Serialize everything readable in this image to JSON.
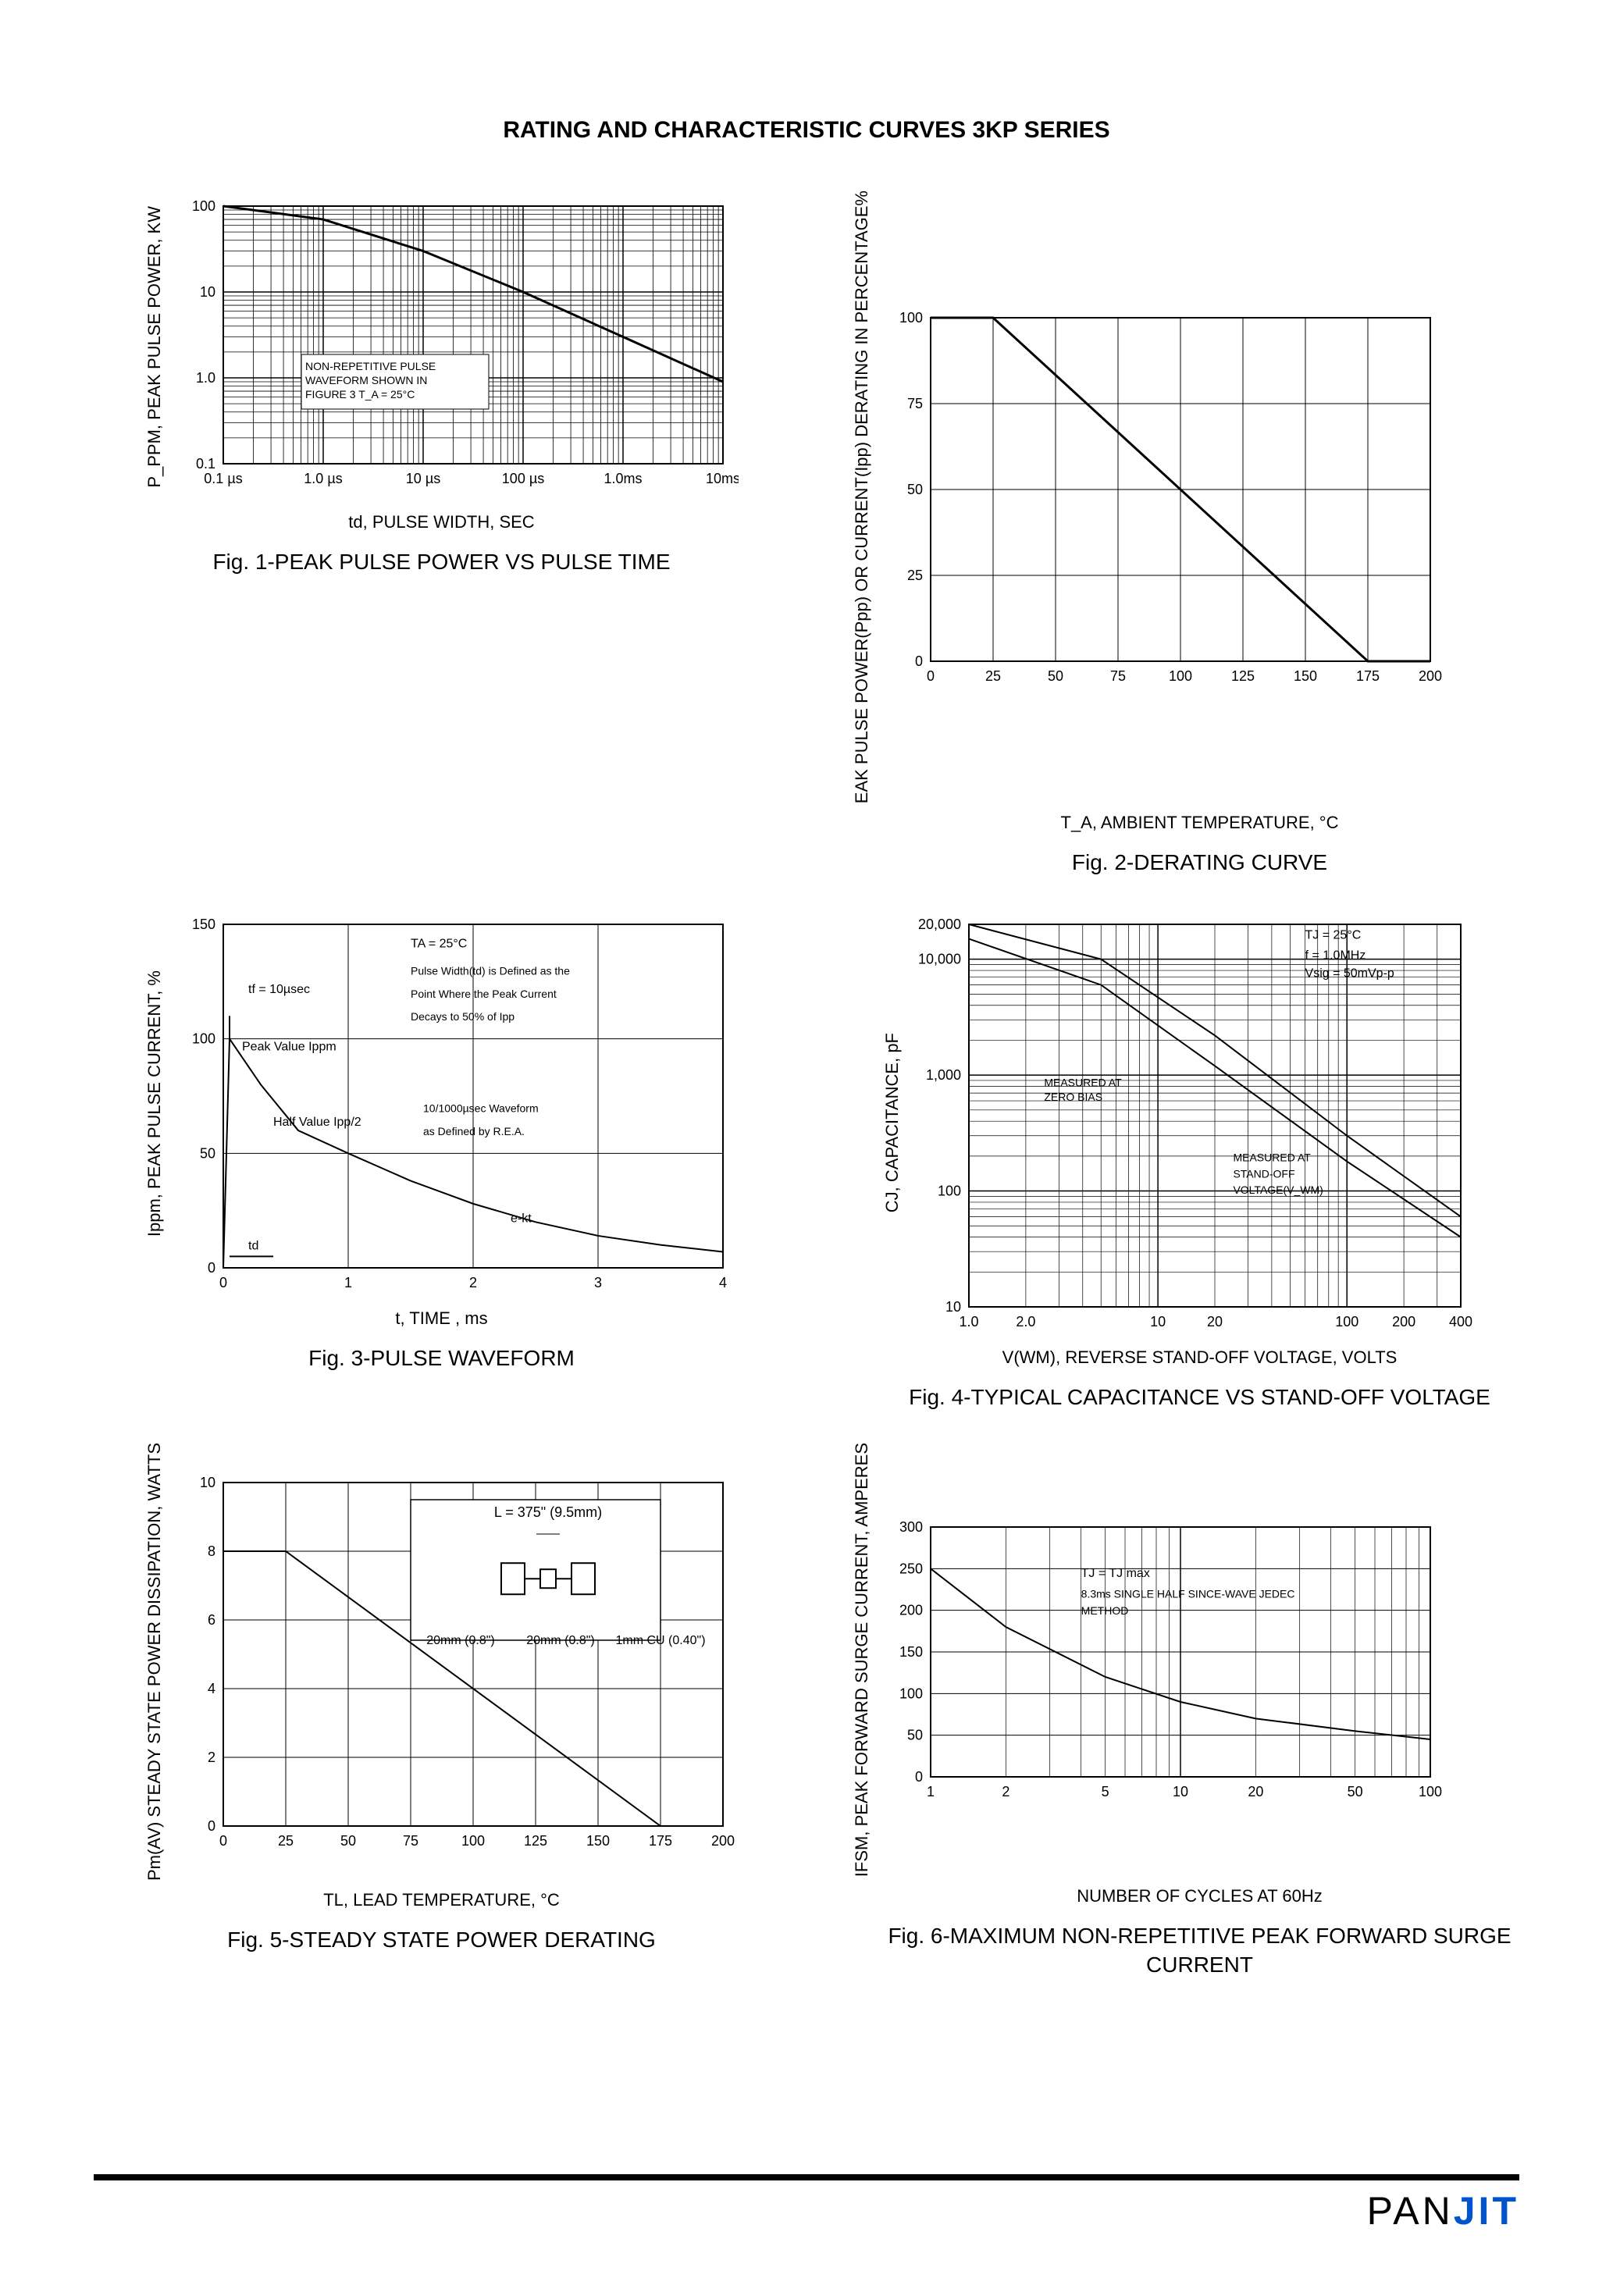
{
  "title": "RATING AND CHARACTERISTIC CURVES 3KP SERIES",
  "logo_text": "PAN",
  "logo_j": "J",
  "logo_i": "I",
  "logo_t": "T",
  "fig1": {
    "type": "line-loglog",
    "caption": "Fig. 1-PEAK PULSE POWER VS PULSE TIME",
    "xlabel": "td, PULSE WIDTH, SEC",
    "ylabel": "P_PPM, PEAK PULSE POWER, KW",
    "xlim": [
      0.1,
      10000
    ],
    "ylim": [
      0.1,
      100
    ],
    "xticks": [
      "0.1 µs",
      "1.0 µs",
      "10 µs",
      "100 µs",
      "1.0ms",
      "10ms"
    ],
    "yticks": [
      "0.1",
      "1.0",
      "10",
      "100"
    ],
    "note": "NON-REPETITIVE PULSE WAVEFORM SHOWN IN FIGURE 3 T_A = 25°C",
    "curve_color": "#000000",
    "grid_color": "#000000",
    "background_color": "#ffffff",
    "data_decades_x": [
      0.1,
      1,
      10,
      100,
      1000,
      10000
    ],
    "data_y_at_ticks": [
      100,
      70,
      30,
      10,
      3,
      0.9
    ]
  },
  "fig2": {
    "type": "line",
    "caption": "Fig. 2-DERATING CURVE",
    "xlabel": "T_A, AMBIENT TEMPERATURE, °C",
    "ylabel": "EAK PULSE POWER(Ppp) OR CURRENT(Ipp) DERATING IN PERCENTAGE%",
    "xlim": [
      0,
      200
    ],
    "ylim": [
      0,
      100
    ],
    "xticks": [
      0,
      25,
      50,
      75,
      100,
      125,
      150,
      175,
      200
    ],
    "yticks": [
      0,
      25,
      50,
      75,
      100
    ],
    "curve_color": "#000000",
    "grid_color": "#000000",
    "background_color": "#ffffff",
    "data": [
      [
        0,
        100
      ],
      [
        25,
        100
      ],
      [
        175,
        0
      ],
      [
        200,
        0
      ]
    ],
    "line_width": 3
  },
  "fig3": {
    "type": "line",
    "caption": "Fig. 3-PULSE WAVEFORM",
    "xlabel": "t, TIME , ms",
    "ylabel": "Ippm, PEAK PULSE CURRENT, %",
    "xlim": [
      0,
      4
    ],
    "ylim": [
      0,
      150
    ],
    "xticks": [
      0,
      1.0,
      2.0,
      3.0,
      4.0
    ],
    "yticks": [
      0,
      50,
      100,
      150
    ],
    "notes": [
      "TA = 25°C",
      "tf = 10µsec",
      "Peak Value Ippm",
      "Half Value Ipp/2",
      "Pulse Width(td) is Defined as the Point Where the Peak Current Decays to 50% of Ipp",
      "10/1000µsec Waveform as Defined by R.E.A.",
      "e-kt",
      "td"
    ],
    "curve_color": "#000000",
    "grid_color": "#000000",
    "background_color": "#ffffff",
    "data": [
      [
        0,
        0
      ],
      [
        0.05,
        100
      ],
      [
        0.3,
        80
      ],
      [
        0.6,
        60
      ],
      [
        1.0,
        50
      ],
      [
        1.5,
        38
      ],
      [
        2.0,
        28
      ],
      [
        2.5,
        20
      ],
      [
        3.0,
        14
      ],
      [
        3.5,
        10
      ],
      [
        4.0,
        7
      ]
    ],
    "line_width": 2
  },
  "fig4": {
    "type": "line-loglog",
    "caption": "Fig. 4-TYPICAL CAPACITANCE VS STAND-OFF VOLTAGE",
    "xlabel": "V(WM), REVERSE STAND-OFF VOLTAGE, VOLTS",
    "ylabel": "CJ, CAPACITANCE, pF",
    "xlim": [
      1,
      400
    ],
    "ylim": [
      10,
      20000
    ],
    "xticks": [
      "1.0",
      "2.0",
      "10",
      "20",
      "100",
      "200",
      "400"
    ],
    "yticks": [
      "10",
      "100",
      "1,000",
      "10,000",
      "20,000"
    ],
    "notes": [
      "TJ = 25°C",
      "f = 1.0MHz",
      "Vsig = 50mVp-p",
      "MEASURED AT ZERO BIAS",
      "MEASURED AT STAND-OFF VOLTAGE(V_WM)"
    ],
    "curve_color": "#000000",
    "grid_color": "#000000",
    "background_color": "#ffffff",
    "series1": [
      [
        1,
        20000
      ],
      [
        5,
        10000
      ],
      [
        20,
        2200
      ],
      [
        100,
        300
      ],
      [
        400,
        60
      ]
    ],
    "series2": [
      [
        1,
        15000
      ],
      [
        5,
        6000
      ],
      [
        20,
        1200
      ],
      [
        100,
        180
      ],
      [
        400,
        40
      ]
    ],
    "line_width": 2
  },
  "fig5": {
    "type": "line",
    "caption": "Fig. 5-STEADY STATE POWER DERATING",
    "xlabel": "TL, LEAD TEMPERATURE, °C",
    "ylabel": "Pm(AV) STEADY STATE POWER DISSIPATION, WATTS",
    "xlim": [
      0,
      200
    ],
    "ylim": [
      0,
      10
    ],
    "xticks": [
      0,
      25,
      50,
      75,
      100,
      125,
      150,
      175,
      200
    ],
    "yticks": [
      0,
      2.0,
      4.0,
      6.0,
      8.0,
      10.0
    ],
    "curve_color": "#000000",
    "grid_color": "#000000",
    "background_color": "#ffffff",
    "data": [
      [
        0,
        8.0
      ],
      [
        25,
        8.0
      ],
      [
        175,
        0
      ],
      [
        200,
        0
      ]
    ],
    "line_width": 2,
    "inline_note": "L = 375\" (9.5mm)",
    "dim_labels": [
      "20mm (0.8\")",
      "20mm (0.8\")",
      "1mm CU (0.40\")"
    ]
  },
  "fig6": {
    "type": "line-logx",
    "caption": "Fig. 6-MAXIMUM NON-REPETITIVE PEAK FORWARD SURGE CURRENT",
    "xlabel": "NUMBER OF CYCLES AT 60Hz",
    "ylabel": "IFSM, PEAK FORWARD SURGE CURRENT, AMPERES",
    "xlim": [
      1,
      100
    ],
    "ylim": [
      0,
      300
    ],
    "xticks": [
      "1",
      "2",
      "5",
      "10",
      "20",
      "50",
      "100"
    ],
    "yticks": [
      0,
      50,
      100,
      150,
      200,
      250,
      300
    ],
    "notes": [
      "TJ = TJ max",
      "8.3ms SINGLE HALF SINCE-WAVE JEDEC METHOD"
    ],
    "curve_color": "#000000",
    "grid_color": "#000000",
    "background_color": "#ffffff",
    "data": [
      [
        1,
        250
      ],
      [
        2,
        180
      ],
      [
        5,
        120
      ],
      [
        10,
        90
      ],
      [
        20,
        70
      ],
      [
        50,
        55
      ],
      [
        100,
        45
      ]
    ],
    "line_width": 2
  }
}
